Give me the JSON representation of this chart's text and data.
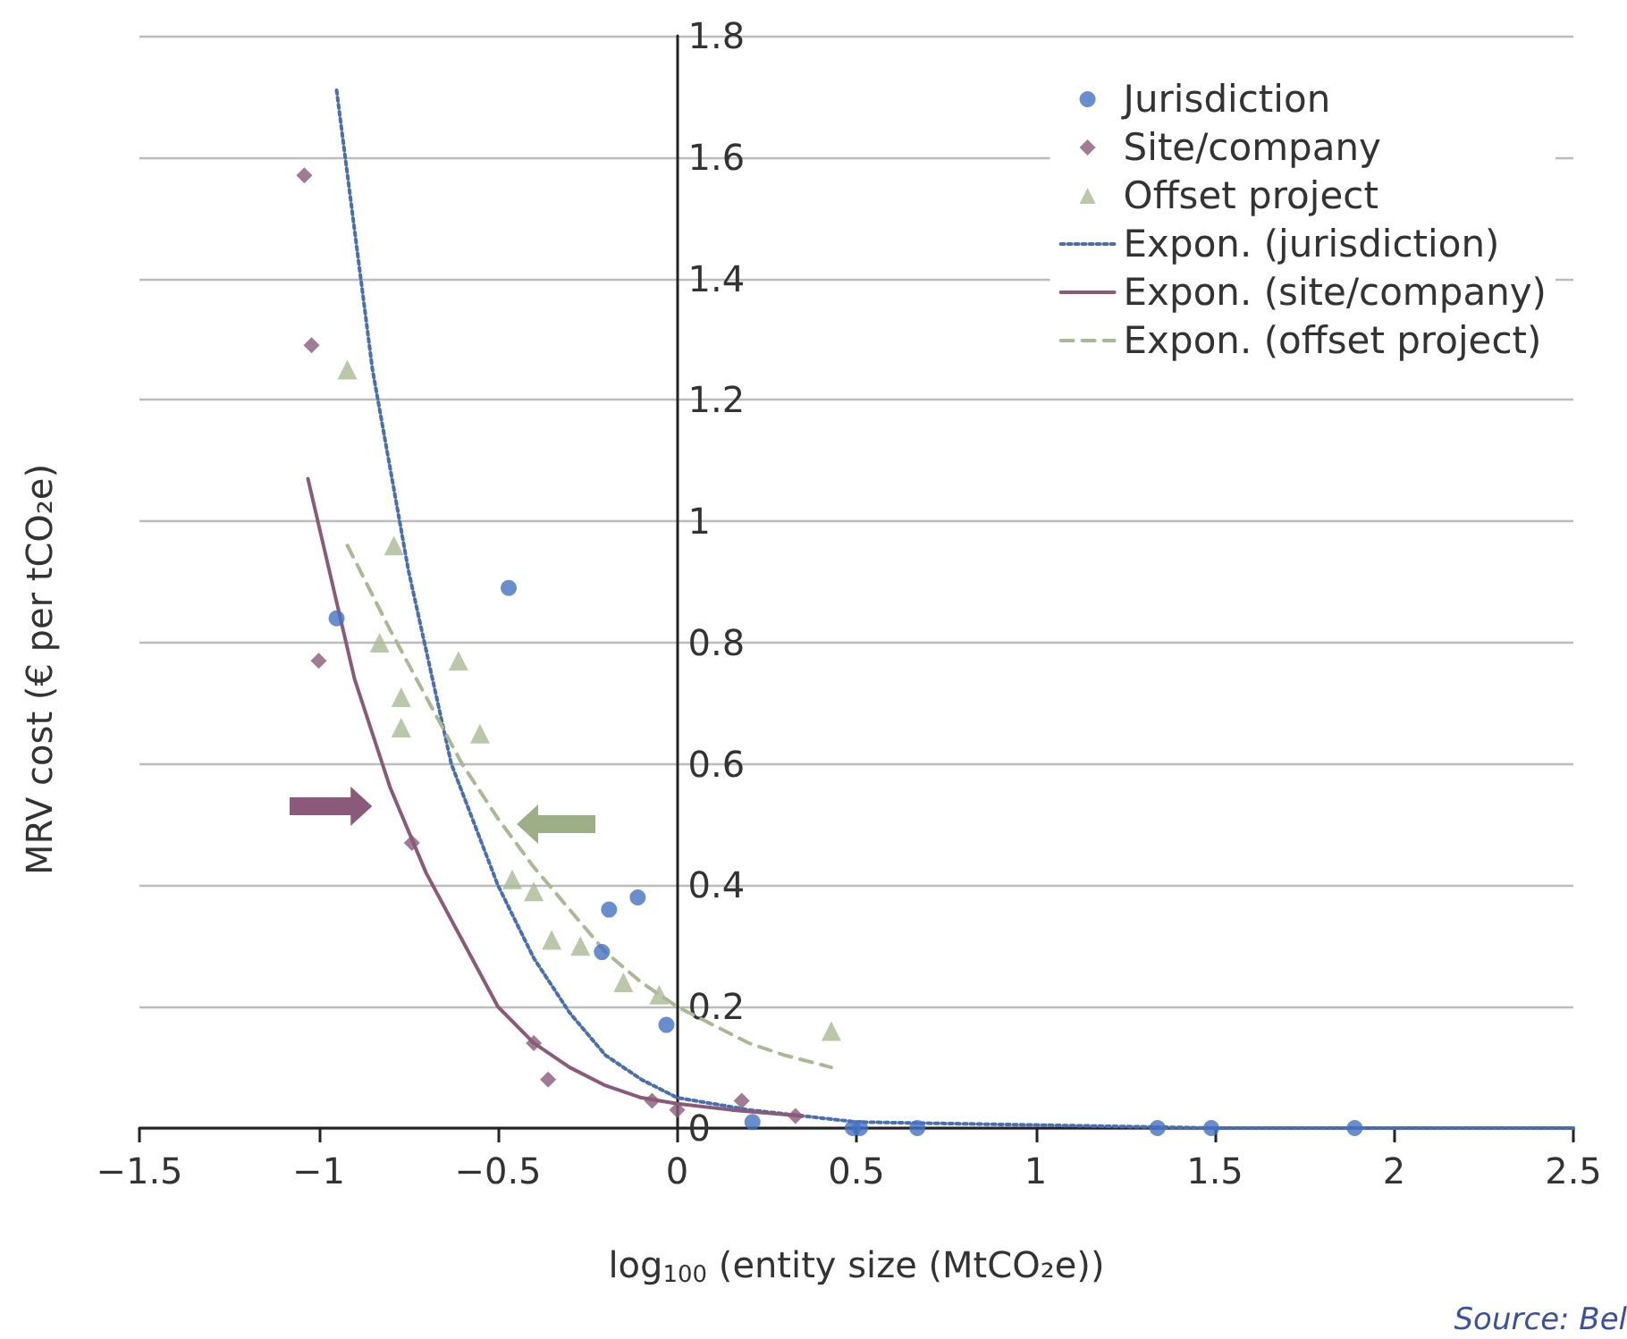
{
  "chart_data": {
    "type": "scatter",
    "xlabel": "log$_{100}$ (entity size (MtCO₂e))",
    "ylabel": "MRV cost (€ per tCO₂e)",
    "xlim": [
      -1.5,
      2.5
    ],
    "xticks": [
      {
        "value": -1.5,
        "label": "−1.5"
      },
      {
        "value": -1,
        "label": "−1"
      },
      {
        "value": -0.5,
        "label": "−0.5"
      },
      {
        "value": 0,
        "label": "0"
      },
      {
        "value": 0.5,
        "label": "0.5"
      },
      {
        "value": 1,
        "label": "1"
      },
      {
        "value": 1.5,
        "label": "1.5"
      },
      {
        "value": 2,
        "label": "2"
      },
      {
        "value": 2.5,
        "label": "2.5"
      }
    ],
    "ylim": [
      0,
      1.8
    ],
    "yticks": [
      0,
      0.2,
      0.4,
      0.6,
      0.8,
      1,
      1.2,
      1.4,
      1.6,
      1.8
    ],
    "grid": "y",
    "legend": "top right",
    "annotations": [
      "Source: Bel"
    ],
    "series": [
      {
        "name": "Jurisdiction",
        "marker": "circle",
        "color": "#4472c4",
        "x": [
          -0.95,
          -0.47,
          -0.19,
          -0.11,
          -0.21,
          -0.03,
          0.21,
          0.49,
          0.51,
          0.67,
          1.34,
          1.49,
          1.89
        ],
        "values": [
          0.84,
          0.89,
          0.36,
          0.38,
          0.29,
          0.17,
          0.01,
          0,
          0,
          0,
          0,
          0,
          0
        ]
      },
      {
        "name": "Site/company",
        "marker": "diamond",
        "color": "#8a5a78",
        "x": [
          -1.04,
          -1.02,
          -1.0,
          -0.74,
          -0.4,
          -0.36,
          -0.07,
          0.0,
          0.18,
          0.33
        ],
        "values": [
          1.57,
          1.29,
          0.77,
          0.47,
          0.14,
          0.08,
          0.045,
          0.03,
          0.045,
          0.02
        ]
      },
      {
        "name": "Offset project",
        "marker": "triangle",
        "color": "#a9b994",
        "x": [
          -0.92,
          -0.79,
          -0.83,
          -0.77,
          -0.77,
          -0.61,
          -0.55,
          -0.46,
          -0.4,
          -0.35,
          -0.27,
          -0.15,
          -0.05,
          0.43
        ],
        "values": [
          1.25,
          0.96,
          0.8,
          0.71,
          0.66,
          0.77,
          0.65,
          0.41,
          0.39,
          0.31,
          0.3,
          0.24,
          0.22,
          0.16
        ]
      },
      {
        "name": "Expon. (jurisdiction)",
        "type": "line",
        "marker": "none",
        "line_style": "dotted",
        "color": "#4a6fb0",
        "x": [
          -0.95,
          -0.85,
          -0.75,
          -0.63,
          -0.5,
          -0.4,
          -0.3,
          -0.2,
          -0.1,
          0,
          0.2,
          0.5,
          1,
          1.5,
          2.5
        ],
        "values": [
          1.71,
          1.25,
          0.92,
          0.6,
          0.4,
          0.28,
          0.19,
          0.12,
          0.08,
          0.05,
          0.03,
          0.01,
          0.005,
          0,
          0
        ]
      },
      {
        "name": "Expon. (site/company)",
        "type": "line",
        "marker": "none",
        "line_style": "solid",
        "color": "#8a5a78",
        "x": [
          -1.03,
          -0.9,
          -0.8,
          -0.7,
          -0.6,
          -0.5,
          -0.4,
          -0.3,
          -0.2,
          -0.1,
          0,
          0.15,
          0.35
        ],
        "values": [
          1.07,
          0.74,
          0.56,
          0.42,
          0.31,
          0.2,
          0.14,
          0.1,
          0.07,
          0.05,
          0.04,
          0.03,
          0.02
        ]
      },
      {
        "name": "Expon. (offset project)",
        "type": "line",
        "marker": "none",
        "line_style": "dashed",
        "color": "#a9b994",
        "x": [
          -0.92,
          -0.8,
          -0.7,
          -0.6,
          -0.5,
          -0.4,
          -0.3,
          -0.2,
          -0.1,
          0,
          0.1,
          0.2,
          0.3,
          0.43
        ],
        "values": [
          0.96,
          0.82,
          0.71,
          0.6,
          0.51,
          0.43,
          0.36,
          0.29,
          0.24,
          0.2,
          0.17,
          0.14,
          0.12,
          0.1
        ]
      }
    ]
  }
}
